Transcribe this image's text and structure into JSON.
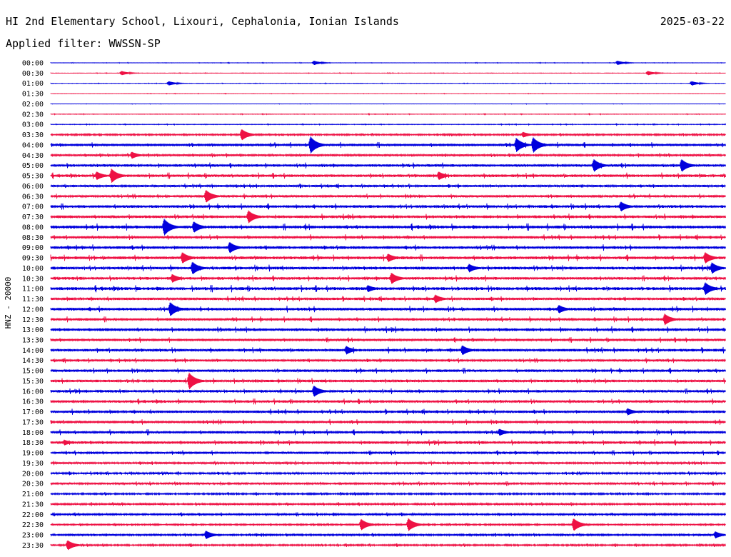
{
  "header": {
    "title": "HI 2nd Elementary School, Lixouri, Cephalonia, Ionian Islands",
    "date": "2025-03-22",
    "filter": "Applied filter: WWSSN-SP"
  },
  "chart_data": {
    "type": "line",
    "ylabel": "HNZ - 20000",
    "colors": [
      "#0000dd",
      "#ee1144"
    ],
    "time_labels": [
      "00:00",
      "00:30",
      "01:00",
      "01:30",
      "02:00",
      "02:30",
      "03:00",
      "03:30",
      "04:00",
      "04:30",
      "05:00",
      "05:30",
      "06:00",
      "06:30",
      "07:00",
      "07:30",
      "08:00",
      "08:30",
      "09:00",
      "09:30",
      "10:00",
      "10:30",
      "11:00",
      "11:30",
      "12:00",
      "12:30",
      "13:00",
      "13:30",
      "14:00",
      "14:30",
      "15:00",
      "15:30",
      "16:00",
      "16:30",
      "17:00",
      "17:30",
      "18:00",
      "18:30",
      "19:00",
      "19:30",
      "20:00",
      "20:30",
      "21:00",
      "21:30",
      "22:00",
      "22:30",
      "23:00",
      "23:30"
    ],
    "noise_levels": [
      0.2,
      0.2,
      0.2,
      0.15,
      0.15,
      0.25,
      0.3,
      0.8,
      1.3,
      1.0,
      1.3,
      1.4,
      1.1,
      1.2,
      1.4,
      1.4,
      1.6,
      1.3,
      1.4,
      1.5,
      1.5,
      1.4,
      1.6,
      1.3,
      1.5,
      1.3,
      1.5,
      1.2,
      1.4,
      1.2,
      1.3,
      1.3,
      1.3,
      1.3,
      1.3,
      1.3,
      1.3,
      1.4,
      1.1,
      1.0,
      0.9,
      1.0,
      0.8,
      0.9,
      0.9,
      0.7,
      0.9,
      0.8
    ],
    "events": [
      {
        "row": 0,
        "x": 0.39,
        "amp": 3
      },
      {
        "row": 0,
        "x": 0.84,
        "amp": 3
      },
      {
        "row": 1,
        "x": 0.105,
        "amp": 3
      },
      {
        "row": 1,
        "x": 0.885,
        "amp": 3
      },
      {
        "row": 2,
        "x": 0.175,
        "amp": 3
      },
      {
        "row": 2,
        "x": 0.95,
        "amp": 3
      },
      {
        "row": 7,
        "x": 0.283,
        "amp": 8
      },
      {
        "row": 7,
        "x": 0.7,
        "amp": 4
      },
      {
        "row": 8,
        "x": 0.385,
        "amp": 12
      },
      {
        "row": 8,
        "x": 0.69,
        "amp": 10
      },
      {
        "row": 8,
        "x": 0.715,
        "amp": 11
      },
      {
        "row": 9,
        "x": 0.12,
        "amp": 5
      },
      {
        "row": 10,
        "x": 0.805,
        "amp": 9
      },
      {
        "row": 10,
        "x": 0.935,
        "amp": 9
      },
      {
        "row": 11,
        "x": 0.068,
        "amp": 6
      },
      {
        "row": 11,
        "x": 0.09,
        "amp": 10
      },
      {
        "row": 11,
        "x": 0.575,
        "amp": 6
      },
      {
        "row": 13,
        "x": 0.23,
        "amp": 9
      },
      {
        "row": 14,
        "x": 0.845,
        "amp": 7
      },
      {
        "row": 15,
        "x": 0.293,
        "amp": 9
      },
      {
        "row": 16,
        "x": 0.168,
        "amp": 12
      },
      {
        "row": 16,
        "x": 0.212,
        "amp": 8
      },
      {
        "row": 18,
        "x": 0.265,
        "amp": 8
      },
      {
        "row": 19,
        "x": 0.195,
        "amp": 8
      },
      {
        "row": 19,
        "x": 0.5,
        "amp": 6
      },
      {
        "row": 19,
        "x": 0.97,
        "amp": 8
      },
      {
        "row": 20,
        "x": 0.21,
        "amp": 9
      },
      {
        "row": 20,
        "x": 0.62,
        "amp": 6
      },
      {
        "row": 20,
        "x": 0.98,
        "amp": 8
      },
      {
        "row": 21,
        "x": 0.18,
        "amp": 6
      },
      {
        "row": 21,
        "x": 0.505,
        "amp": 8
      },
      {
        "row": 22,
        "x": 0.47,
        "amp": 5
      },
      {
        "row": 22,
        "x": 0.97,
        "amp": 9
      },
      {
        "row": 23,
        "x": 0.57,
        "amp": 6
      },
      {
        "row": 24,
        "x": 0.177,
        "amp": 10
      },
      {
        "row": 24,
        "x": 0.753,
        "amp": 6
      },
      {
        "row": 25,
        "x": 0.91,
        "amp": 8
      },
      {
        "row": 28,
        "x": 0.438,
        "amp": 6
      },
      {
        "row": 28,
        "x": 0.61,
        "amp": 7
      },
      {
        "row": 31,
        "x": 0.205,
        "amp": 12
      },
      {
        "row": 32,
        "x": 0.39,
        "amp": 8
      },
      {
        "row": 34,
        "x": 0.855,
        "amp": 5
      },
      {
        "row": 36,
        "x": 0.665,
        "amp": 5
      },
      {
        "row": 37,
        "x": 0.02,
        "amp": 4
      },
      {
        "row": 45,
        "x": 0.46,
        "amp": 8
      },
      {
        "row": 45,
        "x": 0.53,
        "amp": 9
      },
      {
        "row": 45,
        "x": 0.775,
        "amp": 9
      },
      {
        "row": 46,
        "x": 0.23,
        "amp": 6
      },
      {
        "row": 46,
        "x": 0.985,
        "amp": 5
      },
      {
        "row": 47,
        "x": 0.025,
        "amp": 7
      }
    ]
  }
}
